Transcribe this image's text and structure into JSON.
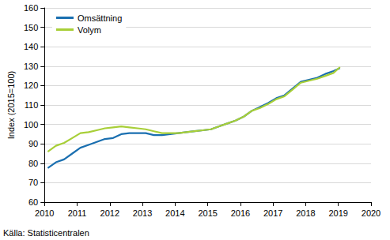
{
  "chart_data": {
    "type": "line",
    "y_label": "Index (2015=100)",
    "source": "Källa: Statisticentralen",
    "x": [
      2010.1,
      2010.35,
      2010.6,
      2010.85,
      2011.1,
      2011.35,
      2011.6,
      2011.85,
      2012.1,
      2012.35,
      2012.6,
      2012.85,
      2013.1,
      2013.35,
      2013.6,
      2013.85,
      2014.1,
      2014.35,
      2014.6,
      2014.85,
      2015.1,
      2015.35,
      2015.6,
      2015.85,
      2016.1,
      2016.35,
      2016.6,
      2016.85,
      2017.1,
      2017.35,
      2017.6,
      2017.85,
      2018.1,
      2018.35,
      2018.6,
      2018.85,
      2019.05
    ],
    "series": [
      {
        "name": "Omsättning",
        "color": "#1a6fb0",
        "values": [
          77.5,
          80.5,
          82,
          85,
          88,
          89.5,
          91,
          92.5,
          93,
          95,
          95.5,
          95.5,
          95.5,
          94.5,
          94.5,
          95,
          95.5,
          96,
          96.5,
          97,
          97.5,
          99,
          100.5,
          102,
          104,
          107,
          109,
          111,
          113.5,
          115,
          118.5,
          122,
          123,
          124,
          126,
          127.5,
          129
        ]
      },
      {
        "name": "Volym",
        "color": "#a8cf38",
        "values": [
          86,
          89,
          90.5,
          93,
          95.5,
          96,
          97,
          98,
          98.5,
          99,
          98.5,
          98,
          97.5,
          96.5,
          95.5,
          95.5,
          95.5,
          96,
          96.5,
          97,
          97.5,
          99,
          100.5,
          102,
          104,
          107,
          108.5,
          110.5,
          113,
          114.5,
          118,
          121.5,
          122.5,
          123.5,
          125,
          126.5,
          129.5
        ]
      }
    ],
    "xlim": [
      2010,
      2020
    ],
    "xticks": [
      2010,
      2011,
      2012,
      2013,
      2014,
      2015,
      2016,
      2017,
      2018,
      2019,
      2020
    ],
    "ylim": [
      60,
      160
    ],
    "yticks": [
      60,
      70,
      80,
      90,
      100,
      110,
      120,
      130,
      140,
      150,
      160
    ],
    "grid": true,
    "legend": "upper left"
  }
}
